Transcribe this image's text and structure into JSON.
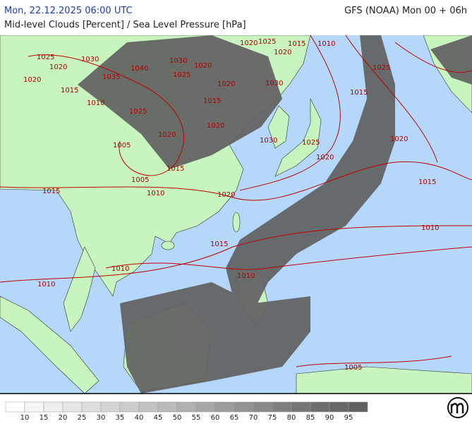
{
  "header": {
    "datetime": "Mon, 22.12.2025 06:00 UTC",
    "model": "GFS (NOAA) Mon 00 + 06h",
    "title": "Mid-level Clouds [Percent] / Sea Level Pressure [hPa]"
  },
  "isobar_labels": [
    1025,
    1020,
    1030,
    1035,
    1040,
    1030,
    1025,
    1020,
    1020,
    1025,
    1020,
    1015,
    1010,
    1025,
    1020,
    1015,
    1010,
    1025,
    1020,
    1015,
    1030,
    1020,
    1020,
    1030,
    1025,
    1020,
    1015,
    1005,
    1015,
    1020,
    1005,
    1010,
    1015,
    1020,
    1015,
    1010,
    1015,
    1010,
    1010,
    1010,
    1005
  ],
  "legend": {
    "colors": [
      "#ffffff",
      "#f6f6f6",
      "#eeeeee",
      "#e6e6e6",
      "#dedede",
      "#d5d5d5",
      "#cccccc",
      "#c3c3c3",
      "#bababa",
      "#b1b1b1",
      "#a7a7a7",
      "#9d9d9d",
      "#939393",
      "#898989",
      "#7f7f7f",
      "#767676",
      "#6e6e6e",
      "#676767",
      "#616161"
    ],
    "labels": [
      10,
      15,
      20,
      25,
      30,
      35,
      40,
      45,
      50,
      55,
      60,
      65,
      70,
      75,
      80,
      85,
      90,
      95
    ]
  }
}
